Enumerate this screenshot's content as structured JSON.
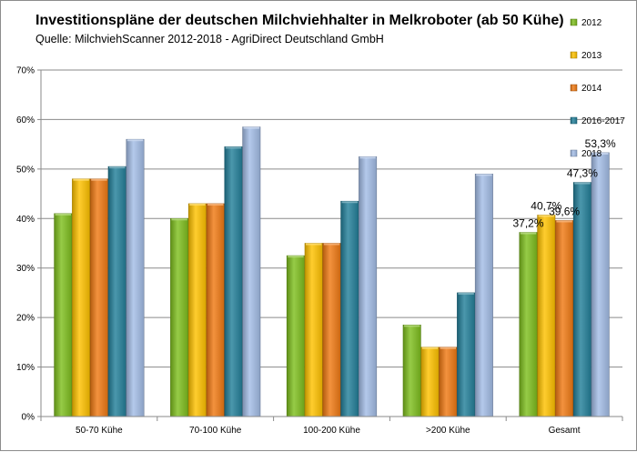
{
  "chart_data": {
    "type": "bar",
    "title": "Investitionspläne der deutschen Milchviehhalter in Melkroboter (ab 50 Kühe)",
    "subtitle": "Quelle: MilchviehScanner 2012-2018 - AgriDirect Deutschland GmbH",
    "categories": [
      "50-70 Kühe",
      "70-100 Kühe",
      "100-200 Kühe",
      ">200 Kühe",
      "Gesamt"
    ],
    "series": [
      {
        "name": "2012",
        "color": "#7fbf1e",
        "values": [
          41,
          40,
          32.5,
          18.5,
          37.2
        ]
      },
      {
        "name": "2013",
        "color": "#ffc200",
        "values": [
          48,
          43,
          35,
          14,
          40.7
        ]
      },
      {
        "name": "2014",
        "color": "#f07a14",
        "values": [
          48,
          43,
          35,
          14,
          39.6
        ]
      },
      {
        "name": "2016-2017",
        "color": "#24809a",
        "values": [
          50.5,
          54.5,
          43.5,
          25,
          47.3
        ]
      },
      {
        "name": "2018",
        "color": "#a4bde6",
        "values": [
          56,
          58.5,
          52.5,
          49,
          53.3
        ]
      }
    ],
    "data_labels": {
      "category": "Gesamt",
      "labels": [
        "37,2%",
        "40,7%",
        "39,6%",
        "47,3%",
        "53,3%"
      ]
    },
    "ylim": [
      0,
      70
    ],
    "y_ticks": [
      "0%",
      "10%",
      "20%",
      "30%",
      "40%",
      "50%",
      "60%",
      "70%"
    ],
    "grid": true,
    "legend_position": "right"
  }
}
